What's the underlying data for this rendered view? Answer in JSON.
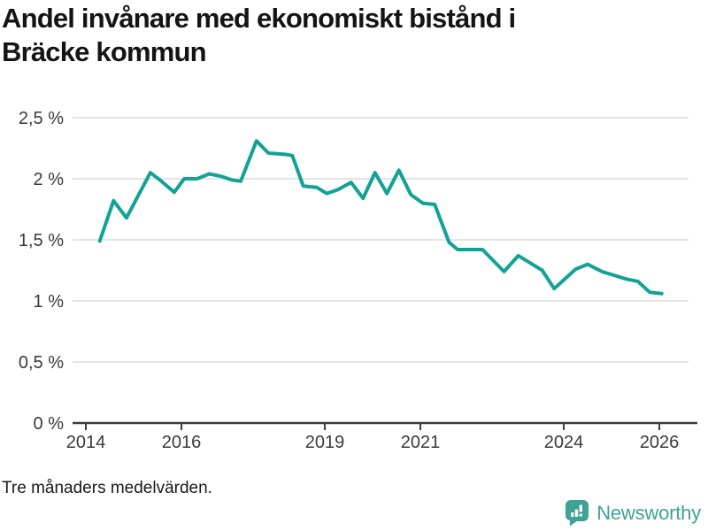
{
  "title": {
    "lines": [
      "Andel invånare med ekonomiskt bistånd i",
      "Bräcke kommun"
    ]
  },
  "footer": {
    "note": "Tre månaders medelvärden."
  },
  "branding": {
    "name": "Newsworthy",
    "icon": "newsworthy-speech-bubble-bar-chart-icon",
    "color": "#3fa295"
  },
  "colors": {
    "line": "#12a296",
    "grid": "#dcdcdc",
    "axis": "#3d3d3d",
    "tick_text": "#3a3a3a",
    "title_text": "#141414",
    "logo": "#3fa295"
  },
  "chart_data": {
    "type": "line",
    "title": "Andel invånare med ekonomiskt bistånd i Bräcke kommun",
    "subtitle_note": "Tre månaders medelvärden.",
    "xlabel": "",
    "ylabel": "",
    "unit": "%",
    "xlim": [
      2013.7,
      2026.6
    ],
    "ylim": [
      0,
      2.5
    ],
    "grid": "horizontal",
    "legend": "none",
    "y_ticks": [
      {
        "value": 0,
        "label": "0 %"
      },
      {
        "value": 0.5,
        "label": "0,5 %"
      },
      {
        "value": 1,
        "label": "1 %"
      },
      {
        "value": 1.5,
        "label": "1,5 %"
      },
      {
        "value": 2,
        "label": "2 %"
      },
      {
        "value": 2.5,
        "label": "2,5 %"
      }
    ],
    "x_ticks": [
      {
        "year": 2014,
        "label": "2014"
      },
      {
        "year": 2016,
        "label": "2016"
      },
      {
        "year": 2019,
        "label": "2019"
      },
      {
        "year": 2021,
        "label": "2021"
      },
      {
        "year": 2024,
        "label": "2024"
      },
      {
        "year": 2026,
        "label": "2026"
      }
    ],
    "series": [
      {
        "points": [
          [
            2014.29,
            1.49
          ],
          [
            2014.58,
            1.82
          ],
          [
            2014.85,
            1.68
          ],
          [
            2015.35,
            2.05
          ],
          [
            2015.55,
            1.99
          ],
          [
            2015.85,
            1.89
          ],
          [
            2016.06,
            2.0
          ],
          [
            2016.33,
            2.0
          ],
          [
            2016.58,
            2.04
          ],
          [
            2016.83,
            2.02
          ],
          [
            2017.06,
            1.99
          ],
          [
            2017.24,
            1.98
          ],
          [
            2017.57,
            2.31
          ],
          [
            2017.82,
            2.21
          ],
          [
            2018.17,
            2.2
          ],
          [
            2018.32,
            2.19
          ],
          [
            2018.55,
            1.94
          ],
          [
            2018.83,
            1.93
          ],
          [
            2019.04,
            1.88
          ],
          [
            2019.27,
            1.91
          ],
          [
            2019.55,
            1.97
          ],
          [
            2019.8,
            1.84
          ],
          [
            2020.05,
            2.05
          ],
          [
            2020.3,
            1.88
          ],
          [
            2020.55,
            2.07
          ],
          [
            2020.8,
            1.87
          ],
          [
            2021.05,
            1.8
          ],
          [
            2021.3,
            1.79
          ],
          [
            2021.6,
            1.48
          ],
          [
            2021.78,
            1.42
          ],
          [
            2022.3,
            1.42
          ],
          [
            2022.75,
            1.24
          ],
          [
            2023.05,
            1.37
          ],
          [
            2023.3,
            1.31
          ],
          [
            2023.55,
            1.25
          ],
          [
            2023.8,
            1.1
          ],
          [
            2024.25,
            1.26
          ],
          [
            2024.5,
            1.3
          ],
          [
            2024.8,
            1.24
          ],
          [
            2025.05,
            1.21
          ],
          [
            2025.3,
            1.18
          ],
          [
            2025.55,
            1.16
          ],
          [
            2025.8,
            1.07
          ],
          [
            2026.05,
            1.06
          ]
        ]
      }
    ]
  }
}
